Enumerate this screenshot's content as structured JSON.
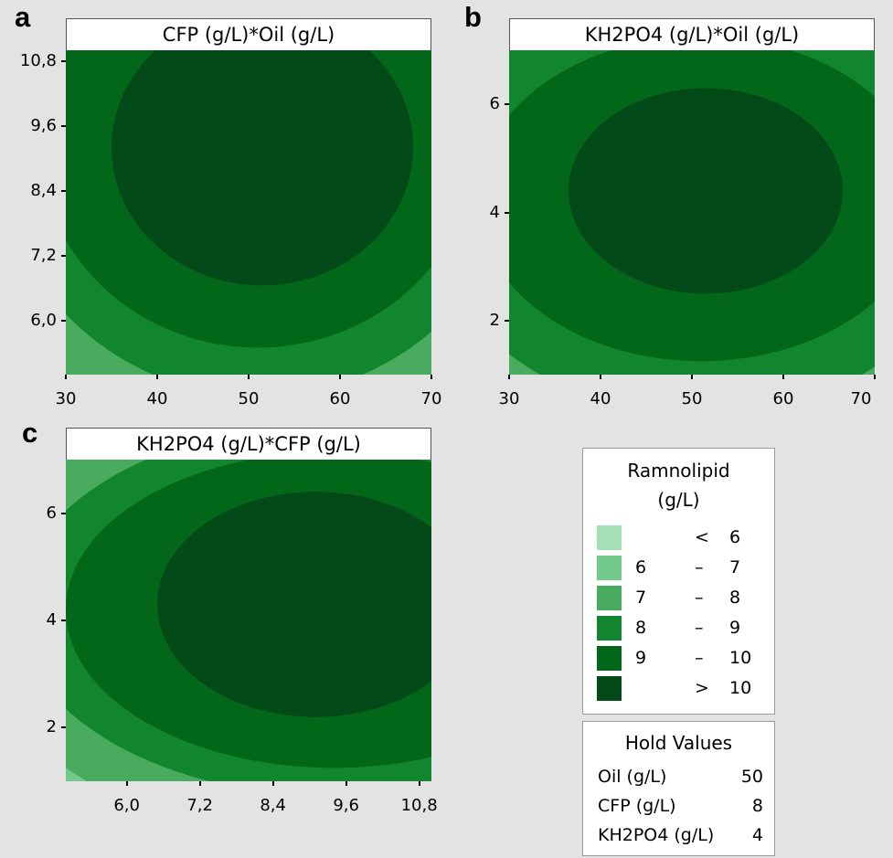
{
  "panels": [
    {
      "letter": "a",
      "title": "CFP (g/L)*Oil (g/L)"
    },
    {
      "letter": "b",
      "title": "KH2PO4 (g/L)*Oil (g/L)"
    },
    {
      "letter": "c",
      "title": "KH2PO4 (g/L)*CFP (g/L)"
    }
  ],
  "legend": {
    "title_line1": "Ramnolipid",
    "title_line2": "(g/L)",
    "rows": [
      {
        "lo": "",
        "sep": "<",
        "hi": "6",
        "color": "#a3e0b6"
      },
      {
        "lo": "6",
        "sep": "–",
        "hi": "7",
        "color": "#73c88c"
      },
      {
        "lo": "7",
        "sep": "–",
        "hi": "8",
        "color": "#49ab60"
      },
      {
        "lo": "8",
        "sep": "–",
        "hi": "9",
        "color": "#11862e"
      },
      {
        "lo": "9",
        "sep": "–",
        "hi": "10",
        "color": "#026718"
      },
      {
        "lo": "",
        "sep": ">",
        "hi": "10",
        "color": "#034a19"
      }
    ]
  },
  "hold_values": {
    "title": "Hold Values",
    "rows": [
      {
        "name": "Oil (g/L)",
        "value": "50"
      },
      {
        "name": "CFP (g/L)",
        "value": "8"
      },
      {
        "name": "KH2PO4 (g/L)",
        "value": "4"
      }
    ]
  },
  "chart_data": [
    {
      "type": "heatmap",
      "subtype": "contour",
      "title": "CFP (g/L)*Oil (g/L)",
      "xlabel": "",
      "ylabel": "",
      "xlim": [
        30,
        70
      ],
      "ylim": [
        5.0,
        11.0
      ],
      "x_ticks": [
        30,
        40,
        50,
        60,
        70
      ],
      "x_tick_labels": [
        "30",
        "40",
        "50",
        "60",
        "70"
      ],
      "y_ticks": [
        6.0,
        7.2,
        8.4,
        9.6,
        10.8
      ],
      "y_tick_labels": [
        "6,0",
        "7,2",
        "8,4",
        "9,6",
        "10,8"
      ],
      "contour_levels": [
        6,
        7,
        8,
        9,
        10
      ],
      "optimum": {
        "x": 51,
        "y": 9.2,
        "value": 10.5
      },
      "regions": [
        {
          "band": "7 – 8",
          "center": [
            51,
            9.6
          ],
          "radii": [
            34,
            5.9
          ]
        },
        {
          "band": "8 – 9",
          "center": [
            51,
            9.5
          ],
          "radii": [
            29,
            4.9
          ]
        },
        {
          "band": "9 – 10",
          "center": [
            51,
            9.35
          ],
          "radii": [
            24,
            3.85
          ]
        },
        {
          "band": "> 10",
          "center": [
            51.5,
            9.2
          ],
          "radii": [
            16.5,
            2.55
          ]
        }
      ]
    },
    {
      "type": "heatmap",
      "subtype": "contour",
      "title": "KH2PO4 (g/L)*Oil (g/L)",
      "xlabel": "",
      "ylabel": "",
      "xlim": [
        30,
        70
      ],
      "ylim": [
        1,
        7
      ],
      "x_ticks": [
        30,
        40,
        50,
        60,
        70
      ],
      "x_tick_labels": [
        "30",
        "40",
        "50",
        "60",
        "70"
      ],
      "y_ticks": [
        2,
        4,
        6
      ],
      "y_tick_labels": [
        "2",
        "4",
        "6"
      ],
      "contour_levels": [
        6,
        7,
        8,
        9,
        10
      ],
      "optimum": {
        "x": 52,
        "y": 4.4,
        "value": 10.5
      },
      "regions": [
        {
          "band": "7 – 8",
          "center": [
            51,
            4.2
          ],
          "radii": [
            38,
            5.4
          ]
        },
        {
          "band": "8 – 9",
          "center": [
            51,
            4.2
          ],
          "radii": [
            30,
            3.95
          ]
        },
        {
          "band": "9 – 10",
          "center": [
            51,
            4.25
          ],
          "radii": [
            24.5,
            3.0
          ]
        },
        {
          "band": "> 10",
          "center": [
            51.5,
            4.4
          ],
          "radii": [
            15,
            1.9
          ]
        }
      ]
    },
    {
      "type": "heatmap",
      "subtype": "contour",
      "title": "KH2PO4 (g/L)*CFP (g/L)",
      "xlabel": "",
      "ylabel": "",
      "xlim": [
        5.0,
        11.0
      ],
      "ylim": [
        1,
        7
      ],
      "x_ticks": [
        6.0,
        7.2,
        8.4,
        9.6,
        10.8
      ],
      "x_tick_labels": [
        "6,0",
        "7,2",
        "8,4",
        "9,6",
        "10,8"
      ],
      "y_ticks": [
        2,
        4,
        6
      ],
      "y_tick_labels": [
        "2",
        "4",
        "6"
      ],
      "contour_levels": [
        6,
        7,
        8,
        9,
        10
      ],
      "optimum": {
        "x": 9.1,
        "y": 4.3,
        "value": 10.5
      },
      "regions": [
        {
          "band": "7 – 8",
          "center": [
            9.6,
            4.2
          ],
          "radii": [
            6.2,
            4.4
          ]
        },
        {
          "band": "8 – 9",
          "center": [
            9.5,
            4.2
          ],
          "radii": [
            5.3,
            3.5
          ]
        },
        {
          "band": "9 – 10",
          "center": [
            9.4,
            4.2
          ],
          "radii": [
            4.4,
            2.95
          ]
        },
        {
          "band": "> 10",
          "center": [
            9.1,
            4.3
          ],
          "radii": [
            2.6,
            2.1
          ]
        }
      ]
    }
  ]
}
